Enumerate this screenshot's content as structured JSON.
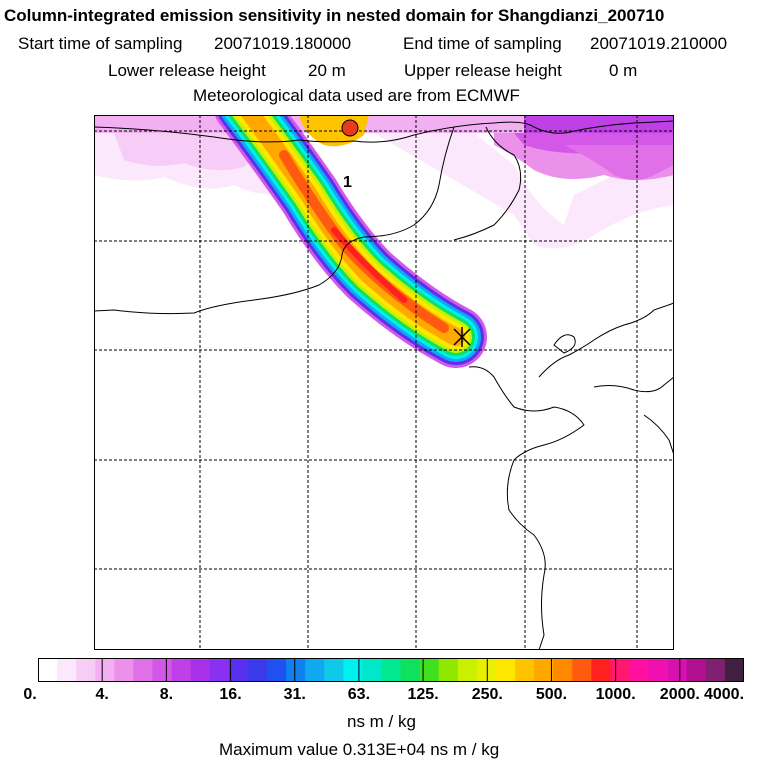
{
  "header": {
    "title": "Column-integrated emission sensitivity in nested domain for Shangdianzi_200710",
    "start_label": "Start time of sampling",
    "start_value": "20071019.180000",
    "end_label": "End time of sampling",
    "end_value": "20071019.210000",
    "lower_label": "Lower release height",
    "lower_value": "20 m",
    "upper_label": "Upper release height",
    "upper_value": "0 m",
    "met_line": "Meteorological data used are from ECMWF"
  },
  "map": {
    "plume_label": "1",
    "release_marker_color": "#e83a1e"
  },
  "colorbar": {
    "colors": [
      "#ffffff",
      "#fce8fc",
      "#f7ccf7",
      "#f2b0f2",
      "#eb90eb",
      "#e070e8",
      "#d458e8",
      "#c040e8",
      "#a830e8",
      "#8a30f0",
      "#5830f0",
      "#3a3ae8",
      "#2050f0",
      "#1080f0",
      "#10a8f0",
      "#10c8e8",
      "#00f0f0",
      "#00e8c8",
      "#00e890",
      "#10e060",
      "#40e020",
      "#90e800",
      "#c8f000",
      "#e8f000",
      "#ffe800",
      "#ffc400",
      "#ffa800",
      "#ff8a00",
      "#ff5a10",
      "#ff2020",
      "#ff1870",
      "#ff10a0",
      "#f010b0",
      "#d810b0",
      "#b01090",
      "#802070",
      "#402040"
    ],
    "ticks": [
      "0.",
      "4.",
      "8.",
      "16.",
      "31.",
      "63.",
      "125.",
      "250.",
      "500.",
      "1000.",
      "2000.",
      "4000."
    ],
    "unit": "ns m / kg",
    "max_text": "Maximum value  0.313E+04 ns m / kg"
  }
}
